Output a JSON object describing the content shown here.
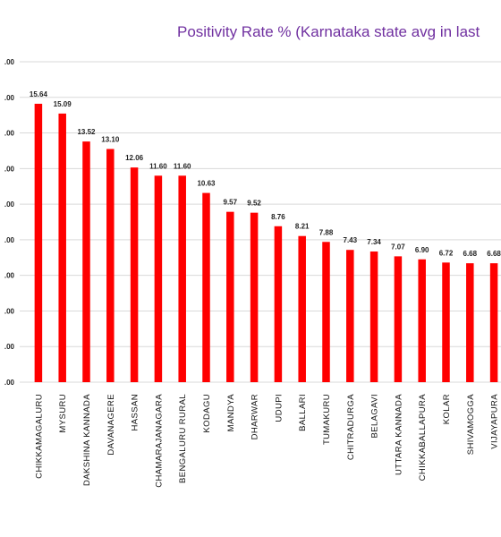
{
  "chart_data": {
    "type": "bar",
    "title": "Positivity Rate % (Karnataka state avg in last",
    "ytick_labels": [
      ".00",
      ".00",
      ".00",
      ".00",
      ".00",
      ".00",
      ".00",
      ".00",
      ".00",
      ".00"
    ],
    "ylim": [
      0,
      18
    ],
    "grid": true,
    "bar_color": "#ff0000",
    "categories": [
      "CHIKKAMAGALURU",
      "MYSURU",
      "DAKSHINA KANNADA",
      "DAVANAGERE",
      "HASSAN",
      "CHAMARAJANAGARA",
      "BENGALURU RURAL",
      "KODAGU",
      "MANDYA",
      "DHARWAR",
      "UDUPI",
      "BALLARI",
      "TUMAKURU",
      "CHITRADURGA",
      "BELAGAVI",
      "UTTARA KANNADA",
      "CHIKKABALLAPURA",
      "KOLAR",
      "SHIVAMOGGA",
      "VIJAYAPURA"
    ],
    "values": [
      15.64,
      15.09,
      13.52,
      13.1,
      12.06,
      11.6,
      11.6,
      10.63,
      9.57,
      9.52,
      8.76,
      8.21,
      7.88,
      7.43,
      7.34,
      7.07,
      6.9,
      6.72,
      6.68,
      6.68
    ],
    "value_labels": [
      "15.64",
      "15.09",
      "13.52",
      "13.10",
      "12.06",
      "11.60",
      "11.60",
      "10.63",
      "9.57",
      "9.52",
      "8.76",
      "8.21",
      "7.88",
      "7.43",
      "7.34",
      "7.07",
      "6.90",
      "6.72",
      "6.68",
      "6.68"
    ]
  }
}
